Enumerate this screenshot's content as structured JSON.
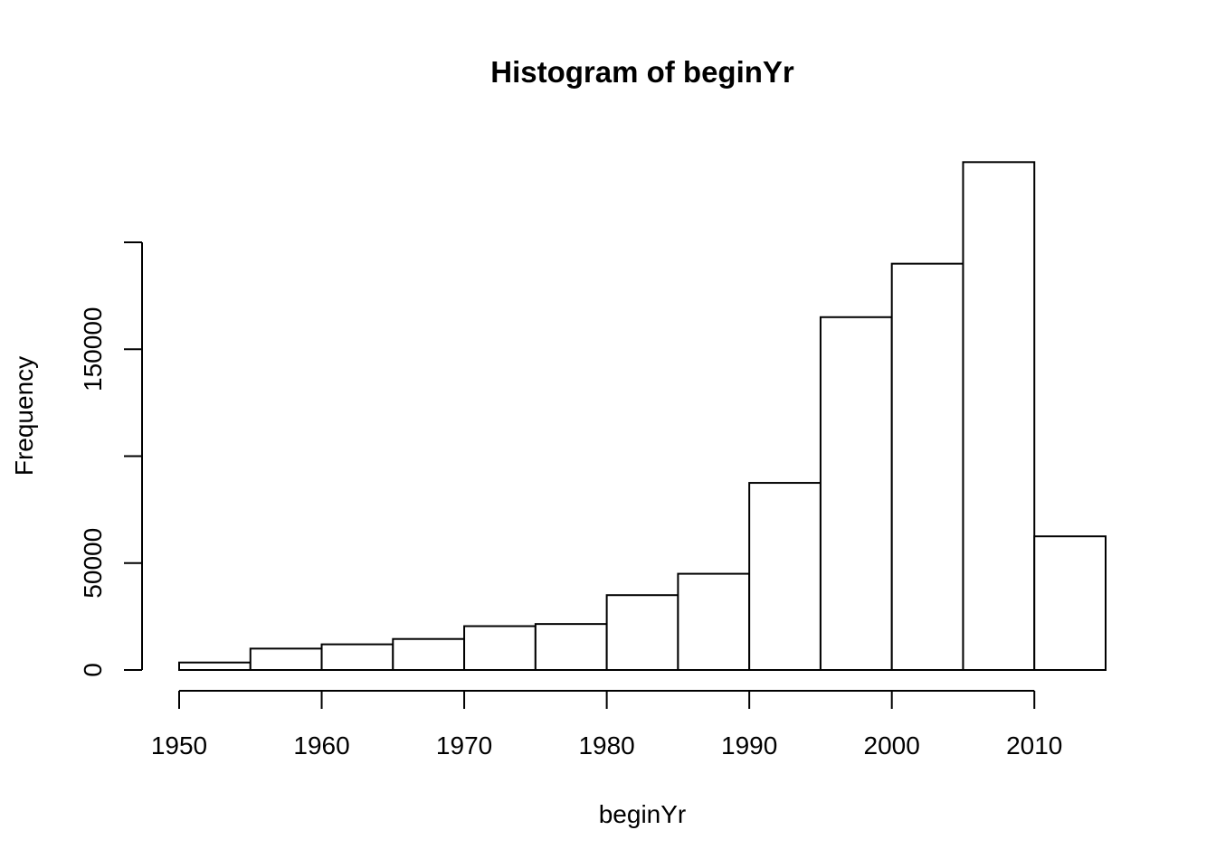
{
  "chart_data": {
    "type": "bar",
    "title": "Histogram of beginYr",
    "xlabel": "beginYr",
    "ylabel": "Frequency",
    "bins": [
      {
        "start": 1950,
        "end": 1955,
        "count": 3500
      },
      {
        "start": 1955,
        "end": 1960,
        "count": 10000
      },
      {
        "start": 1960,
        "end": 1965,
        "count": 12000
      },
      {
        "start": 1965,
        "end": 1970,
        "count": 14500
      },
      {
        "start": 1970,
        "end": 1975,
        "count": 20500
      },
      {
        "start": 1975,
        "end": 1980,
        "count": 21500
      },
      {
        "start": 1980,
        "end": 1985,
        "count": 35000
      },
      {
        "start": 1985,
        "end": 1990,
        "count": 45000
      },
      {
        "start": 1990,
        "end": 1995,
        "count": 87500
      },
      {
        "start": 1995,
        "end": 2000,
        "count": 165000
      },
      {
        "start": 2000,
        "end": 2005,
        "count": 190000
      },
      {
        "start": 2005,
        "end": 2010,
        "count": 237500
      },
      {
        "start": 2010,
        "end": 2015,
        "count": 62500
      }
    ],
    "xlim": [
      1950,
      2015
    ],
    "ylim": [
      0,
      237500
    ],
    "x_ticks": [
      1950,
      1960,
      1970,
      1980,
      1990,
      2000,
      2010
    ],
    "y_ticks": [
      0,
      50000,
      100000,
      150000,
      200000
    ],
    "y_tick_labels": [
      "0",
      "",
      "",
      "",
      ""
    ],
    "y_tick_labels_shown": [
      "0",
      "50000",
      "150000"
    ],
    "grid": false,
    "legend": "none"
  }
}
